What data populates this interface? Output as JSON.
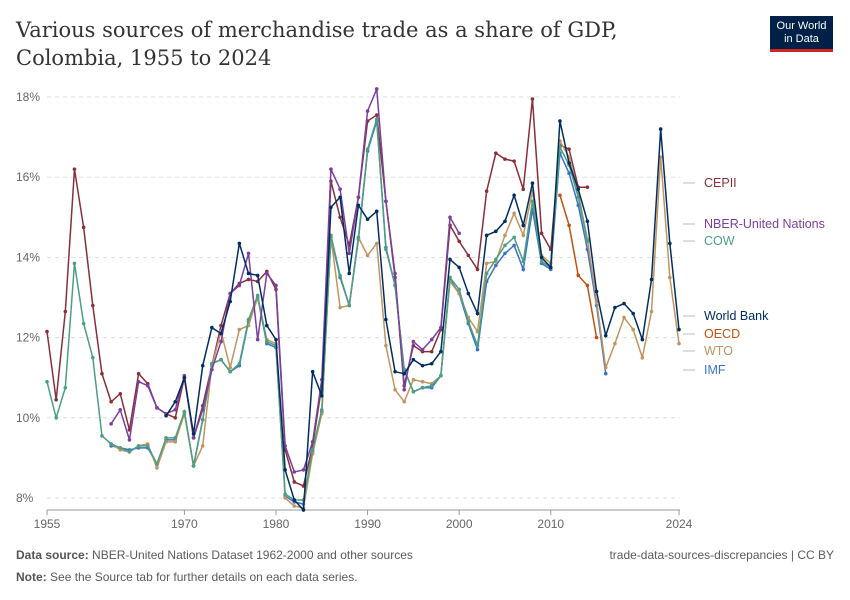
{
  "title": "Various sources of merchandise trade as a share of GDP, Colombia, 1955 to 2024",
  "logo": "Our World in Data",
  "footer": {
    "source_label": "Data source:",
    "source": "NBER-United Nations Dataset 1962-2000 and other sources",
    "note_label": "Note:",
    "note": "See the Source tab for further details on each data series.",
    "license": "trade-data-sources-discrepancies | CC BY"
  },
  "chart_data": {
    "type": "line",
    "title": "Various sources of merchandise trade as a share of GDP, Colombia, 1955 to 2024",
    "xlim": [
      1955,
      2024
    ],
    "ylim": [
      8,
      18
    ],
    "x_ticks": [
      "1955",
      "1970",
      "1980",
      "1990",
      "2000",
      "2010",
      "2024"
    ],
    "y_ticks": [
      "8%",
      "10%",
      "12%",
      "14%",
      "16%",
      "18%"
    ],
    "grid": "horizontal dashed",
    "legend": "right, inline labels",
    "series": [
      {
        "name": "CEPII",
        "color": "#883039",
        "start": 1955,
        "values": [
          12.15,
          10.45,
          12.65,
          16.2,
          14.75,
          12.8,
          11.1,
          10.4,
          10.6,
          9.7,
          11.1,
          10.85,
          10.25,
          10.1,
          10.0,
          11.0,
          9.5,
          10.3,
          11.3,
          12.3,
          13.1,
          13.35,
          13.45,
          13.4,
          13.65,
          13.2,
          9.2,
          8.4,
          8.3,
          9.3,
          10.8,
          15.9,
          15.0,
          14.3,
          15.5,
          17.4,
          17.55,
          15.4,
          13.5,
          10.8,
          11.8,
          11.65,
          11.65,
          12.2,
          14.8,
          14.4,
          14.05,
          13.7,
          15.65,
          16.6,
          16.45,
          16.4,
          15.7,
          17.95,
          14.6,
          14.2,
          16.8,
          16.7,
          15.75,
          15.75
        ]
      },
      {
        "name": "NBER-United Nations",
        "color": "#7b3fa0",
        "start": 1962,
        "values": [
          9.85,
          10.2,
          9.45,
          10.9,
          10.8,
          10.25,
          10.1,
          10.2,
          11.05,
          9.5,
          10.2,
          11.2,
          11.9,
          13.1,
          13.3,
          14.1,
          11.95,
          13.6,
          13.3,
          9.3,
          8.65,
          8.7,
          9.4,
          10.95,
          16.2,
          15.7,
          14.1,
          15.5,
          17.65,
          18.2,
          15.4,
          13.6,
          10.7,
          11.9,
          11.7,
          11.95,
          12.25,
          15.0,
          14.6
        ]
      },
      {
        "name": "COW",
        "color": "#4c9f80",
        "start": 1955,
        "values": [
          10.9,
          10.0,
          10.75,
          13.85,
          12.35,
          11.5,
          9.55,
          9.35,
          9.25,
          9.15,
          9.3,
          9.3,
          8.85,
          9.5,
          9.5,
          10.15,
          8.8,
          9.95,
          11.35,
          11.45,
          11.15,
          11.35,
          12.45,
          13.05,
          11.9,
          11.8,
          8.1,
          7.95,
          7.95,
          9.2,
          10.2,
          14.55,
          13.55,
          12.8,
          14.5,
          16.7,
          17.45,
          14.2,
          13.3,
          11.2,
          10.65,
          10.75,
          10.8,
          11.05,
          13.5,
          13.2,
          12.4,
          11.8,
          13.6,
          13.95,
          14.3,
          14.5,
          13.9,
          15.4,
          13.9,
          13.75,
          16.75,
          16.3,
          15.5,
          14.4
        ]
      },
      {
        "name": "World Bank",
        "color": "#002d62",
        "start": 1968,
        "values": [
          10.05,
          10.4,
          11.0,
          9.6,
          11.3,
          12.25,
          12.1,
          12.9,
          14.35,
          13.6,
          13.55,
          12.3,
          11.95,
          8.7,
          7.95,
          7.7,
          11.15,
          10.55,
          15.25,
          15.5,
          13.6,
          15.3,
          14.95,
          15.15,
          12.45,
          11.15,
          11.1,
          11.45,
          11.3,
          11.35,
          11.65,
          13.95,
          13.75,
          13.1,
          12.6,
          14.55,
          14.65,
          14.9,
          15.55,
          14.8,
          15.85,
          14.0,
          13.75,
          17.4,
          16.35,
          15.7,
          14.9,
          13.15,
          12.05,
          12.75,
          12.85,
          12.6,
          11.95,
          13.45,
          17.2,
          14.35,
          12.2
        ]
      },
      {
        "name": "OECD",
        "color": "#c15310",
        "start": 2011,
        "values": [
          15.55,
          14.8,
          13.55,
          13.3,
          12.0
        ]
      },
      {
        "name": "WTO",
        "color": "#c09560",
        "start": 1962,
        "values": [
          9.35,
          9.2,
          9.15,
          9.3,
          9.35,
          8.75,
          9.4,
          9.4,
          10.1,
          8.8,
          9.3,
          11.3,
          12.15,
          11.25,
          12.2,
          12.3,
          13.0,
          11.95,
          11.85,
          8.0,
          7.8,
          7.75,
          9.1,
          10.1,
          14.5,
          12.75,
          12.8,
          14.5,
          14.05,
          14.35,
          11.8,
          10.7,
          10.4,
          10.95,
          10.9,
          10.85,
          11.05,
          13.4,
          13.1,
          12.5,
          12.15,
          13.85,
          13.9,
          14.55,
          15.1,
          14.55,
          15.65,
          14.05,
          13.85,
          16.9,
          16.5,
          15.6,
          14.45,
          12.9,
          11.25,
          11.85,
          12.5,
          12.2,
          11.5,
          12.65,
          16.5,
          13.5,
          11.85
        ]
      },
      {
        "name": "IMF",
        "color": "#3a72c8",
        "start": 1962,
        "values": [
          9.3,
          9.25,
          9.2,
          9.25,
          9.25,
          8.85,
          9.45,
          9.45,
          10.15,
          8.8,
          9.95,
          11.35,
          11.45,
          11.15,
          11.3,
          12.4,
          13.0,
          11.85,
          11.75,
          8.05,
          7.9,
          7.85,
          9.15,
          10.15,
          14.5,
          13.5,
          12.8,
          14.45,
          16.65,
          17.4,
          14.25,
          13.3,
          11.2,
          10.65,
          10.75,
          10.75,
          11.05,
          13.45,
          13.1,
          12.35,
          11.7,
          13.4,
          13.8,
          14.1,
          14.3,
          13.7,
          15.2,
          13.85,
          13.7,
          16.6,
          16.1,
          15.3,
          14.2,
          12.8,
          11.1
        ]
      }
    ]
  }
}
